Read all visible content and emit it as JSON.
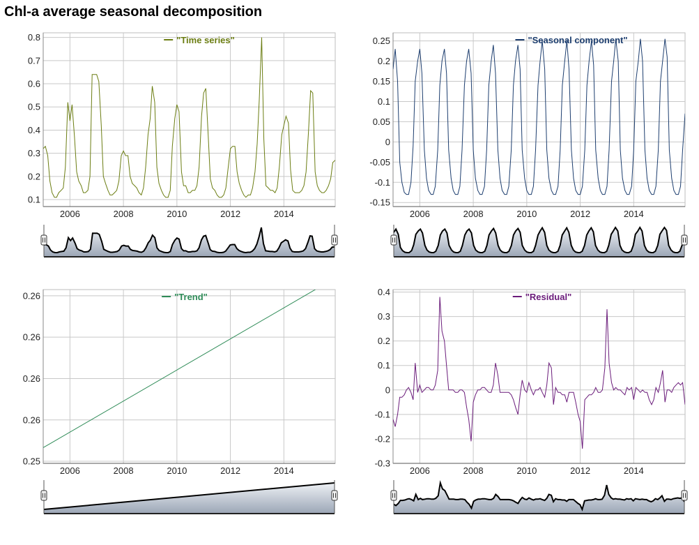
{
  "page": {
    "title": "Chl-a average seasonal decomposition"
  },
  "chart_data": [
    {
      "id": "timeseries",
      "type": "line",
      "legend": "\"Time series\"",
      "color": "#6b7d12",
      "x_ticks": [
        "2006",
        "2008",
        "2010",
        "2012",
        "2014"
      ],
      "x_tick_values": [
        2006,
        2008,
        2010,
        2012,
        2014
      ],
      "xlim": [
        2005.0,
        2015.92
      ],
      "ylim": [
        0.07,
        0.82
      ],
      "y_ticks": [
        0.1,
        0.2,
        0.3,
        0.4,
        0.5,
        0.6,
        0.7,
        0.8
      ],
      "y_tick_labels": [
        "0.1",
        "0.2",
        "0.3",
        "0.4",
        "0.5",
        "0.6",
        "0.7",
        "0.8"
      ],
      "x": [
        2005.0,
        2005.08,
        2005.17,
        2005.25,
        2005.33,
        2005.42,
        2005.5,
        2005.58,
        2005.67,
        2005.75,
        2005.83,
        2005.92,
        2006.0,
        2006.08,
        2006.17,
        2006.25,
        2006.33,
        2006.42,
        2006.5,
        2006.58,
        2006.67,
        2006.75,
        2006.83,
        2006.92,
        2007.0,
        2007.08,
        2007.17,
        2007.25,
        2007.33,
        2007.42,
        2007.5,
        2007.58,
        2007.67,
        2007.75,
        2007.83,
        2007.92,
        2008.0,
        2008.08,
        2008.17,
        2008.25,
        2008.33,
        2008.42,
        2008.5,
        2008.58,
        2008.67,
        2008.75,
        2008.83,
        2008.92,
        2009.0,
        2009.08,
        2009.17,
        2009.25,
        2009.33,
        2009.42,
        2009.5,
        2009.58,
        2009.67,
        2009.75,
        2009.83,
        2009.92,
        2010.0,
        2010.08,
        2010.17,
        2010.25,
        2010.33,
        2010.42,
        2010.5,
        2010.58,
        2010.67,
        2010.75,
        2010.83,
        2010.92,
        2011.0,
        2011.08,
        2011.17,
        2011.25,
        2011.33,
        2011.42,
        2011.5,
        2011.58,
        2011.67,
        2011.75,
        2011.83,
        2011.92,
        2012.0,
        2012.08,
        2012.17,
        2012.25,
        2012.33,
        2012.42,
        2012.5,
        2012.58,
        2012.67,
        2012.75,
        2012.83,
        2012.92,
        2013.0,
        2013.08,
        2013.17,
        2013.25,
        2013.33,
        2013.42,
        2013.5,
        2013.58,
        2013.67,
        2013.75,
        2013.83,
        2013.92,
        2014.0,
        2014.08,
        2014.17,
        2014.25,
        2014.33,
        2014.42,
        2014.5,
        2014.58,
        2014.67,
        2014.75,
        2014.83,
        2014.92,
        2015.0,
        2015.08,
        2015.17,
        2015.25,
        2015.33,
        2015.42,
        2015.5,
        2015.58,
        2015.67,
        2015.75,
        2015.83,
        2015.92
      ],
      "y": [
        0.32,
        0.33,
        0.29,
        0.18,
        0.13,
        0.11,
        0.11,
        0.13,
        0.14,
        0.15,
        0.24,
        0.52,
        0.44,
        0.51,
        0.37,
        0.22,
        0.18,
        0.16,
        0.13,
        0.13,
        0.14,
        0.2,
        0.64,
        0.64,
        0.64,
        0.61,
        0.42,
        0.2,
        0.17,
        0.14,
        0.12,
        0.12,
        0.13,
        0.14,
        0.18,
        0.29,
        0.31,
        0.29,
        0.29,
        0.2,
        0.17,
        0.16,
        0.15,
        0.13,
        0.12,
        0.15,
        0.24,
        0.38,
        0.45,
        0.59,
        0.52,
        0.24,
        0.17,
        0.14,
        0.12,
        0.11,
        0.11,
        0.14,
        0.33,
        0.45,
        0.51,
        0.48,
        0.22,
        0.16,
        0.16,
        0.13,
        0.13,
        0.14,
        0.14,
        0.16,
        0.24,
        0.46,
        0.56,
        0.58,
        0.38,
        0.19,
        0.15,
        0.14,
        0.12,
        0.11,
        0.11,
        0.12,
        0.15,
        0.24,
        0.32,
        0.33,
        0.33,
        0.22,
        0.17,
        0.14,
        0.12,
        0.11,
        0.12,
        0.12,
        0.15,
        0.22,
        0.34,
        0.53,
        0.8,
        0.36,
        0.16,
        0.15,
        0.14,
        0.14,
        0.13,
        0.15,
        0.24,
        0.38,
        0.42,
        0.46,
        0.43,
        0.23,
        0.14,
        0.13,
        0.13,
        0.13,
        0.14,
        0.16,
        0.22,
        0.39,
        0.57,
        0.56,
        0.22,
        0.16,
        0.14,
        0.13,
        0.13,
        0.14,
        0.16,
        0.19,
        0.26,
        0.27
      ]
    },
    {
      "id": "seasonal",
      "type": "line",
      "legend": "\"Seasonal component\"",
      "color": "#1c3d6e",
      "x_ticks": [
        "2006",
        "2008",
        "2010",
        "2012",
        "2014"
      ],
      "x_tick_values": [
        2006,
        2008,
        2010,
        2012,
        2014
      ],
      "xlim": [
        2005.0,
        2015.92
      ],
      "ylim": [
        -0.16,
        0.27
      ],
      "y_ticks": [
        -0.15,
        -0.1,
        -0.05,
        0,
        0.05,
        0.1,
        0.15,
        0.2,
        0.25
      ],
      "y_tick_labels": [
        "-0.15",
        "-0.1",
        "-0.05",
        "0",
        "0.05",
        "0.1",
        "0.15",
        "0.2",
        "0.25"
      ],
      "x": [
        2005.0,
        2005.08,
        2005.17,
        2005.25,
        2005.33,
        2005.42,
        2005.5,
        2005.58,
        2005.67,
        2005.75,
        2005.83,
        2005.92,
        2006.0,
        2006.08,
        2006.17,
        2006.25,
        2006.33,
        2006.42,
        2006.5,
        2006.58,
        2006.67,
        2006.75,
        2006.83,
        2006.92,
        2007.0,
        2007.08,
        2007.17,
        2007.25,
        2007.33,
        2007.42,
        2007.5,
        2007.58,
        2007.67,
        2007.75,
        2007.83,
        2007.92,
        2008.0,
        2008.08,
        2008.17,
        2008.25,
        2008.33,
        2008.42,
        2008.5,
        2008.58,
        2008.67,
        2008.75,
        2008.83,
        2008.92,
        2009.0,
        2009.08,
        2009.17,
        2009.25,
        2009.33,
        2009.42,
        2009.5,
        2009.58,
        2009.67,
        2009.75,
        2009.83,
        2009.92,
        2010.0,
        2010.08,
        2010.17,
        2010.25,
        2010.33,
        2010.42,
        2010.5,
        2010.58,
        2010.67,
        2010.75,
        2010.83,
        2010.92,
        2011.0,
        2011.08,
        2011.17,
        2011.25,
        2011.33,
        2011.42,
        2011.5,
        2011.58,
        2011.67,
        2011.75,
        2011.83,
        2011.92,
        2012.0,
        2012.08,
        2012.17,
        2012.25,
        2012.33,
        2012.42,
        2012.5,
        2012.58,
        2012.67,
        2012.75,
        2012.83,
        2012.92,
        2013.0,
        2013.08,
        2013.17,
        2013.25,
        2013.33,
        2013.42,
        2013.5,
        2013.58,
        2013.67,
        2013.75,
        2013.83,
        2013.92,
        2014.0,
        2014.08,
        2014.17,
        2014.25,
        2014.33,
        2014.42,
        2014.5,
        2014.58,
        2014.67,
        2014.75,
        2014.83,
        2014.92,
        2015.0,
        2015.08,
        2015.17,
        2015.25,
        2015.33,
        2015.42,
        2015.5,
        2015.58,
        2015.67,
        2015.75,
        2015.83,
        2015.92
      ],
      "y": [
        0.18,
        0.23,
        0.15,
        -0.05,
        -0.1,
        -0.125,
        -0.13,
        -0.13,
        -0.1,
        -0.01,
        0.15,
        0.2,
        0.23,
        0.17,
        -0.02,
        -0.09,
        -0.12,
        -0.13,
        -0.13,
        -0.11,
        -0.02,
        0.14,
        0.2,
        0.23,
        0.17,
        -0.02,
        -0.09,
        -0.12,
        -0.13,
        -0.13,
        -0.11,
        -0.02,
        0.14,
        0.2,
        0.23,
        0.17,
        -0.02,
        -0.09,
        -0.12,
        -0.13,
        -0.13,
        -0.11,
        -0.02,
        0.14,
        0.2,
        0.24,
        0.17,
        -0.02,
        -0.09,
        -0.12,
        -0.13,
        -0.13,
        -0.11,
        -0.02,
        0.14,
        0.2,
        0.24,
        0.18,
        -0.02,
        -0.09,
        -0.12,
        -0.13,
        -0.13,
        -0.11,
        -0.02,
        0.14,
        0.2,
        0.25,
        0.18,
        -0.02,
        -0.09,
        -0.12,
        -0.13,
        -0.13,
        -0.11,
        -0.02,
        0.14,
        0.2,
        0.25,
        0.18,
        -0.02,
        -0.09,
        -0.12,
        -0.13,
        -0.13,
        -0.11,
        -0.02,
        0.14,
        0.2,
        0.25,
        0.19,
        -0.02,
        -0.09,
        -0.12,
        -0.13,
        -0.13,
        -0.11,
        -0.02,
        0.15,
        0.2,
        0.255,
        0.2,
        -0.02,
        -0.09,
        -0.12,
        -0.13,
        -0.13,
        -0.11,
        -0.02,
        0.15,
        0.2,
        0.255,
        0.2,
        -0.02,
        -0.09,
        -0.12,
        -0.13,
        -0.13,
        -0.11,
        -0.02,
        0.15,
        0.2,
        0.255,
        0.21,
        -0.02,
        -0.09,
        -0.12,
        -0.13,
        -0.13,
        -0.11,
        -0.02,
        0.07
      ]
    },
    {
      "id": "trend",
      "type": "line",
      "legend": "\"Trend\"",
      "color": "#2e8b57",
      "x_ticks": [
        "2006",
        "2008",
        "2010",
        "2012",
        "2014"
      ],
      "x_tick_values": [
        2006,
        2008,
        2010,
        2012,
        2014
      ],
      "xlim": [
        2005.0,
        2015.92
      ],
      "ylim": [
        0.0,
        4.2
      ],
      "y_ticks": [
        0.05,
        1.05,
        2.05,
        3.05,
        4.05
      ],
      "y_tick_labels": [
        "0.25",
        "0.26",
        "0.26",
        "0.26",
        "0.26"
      ],
      "x": [
        2005.0,
        2015.92
      ],
      "y": [
        0.38,
        4.48
      ]
    },
    {
      "id": "residual",
      "type": "line",
      "legend": "\"Residual\"",
      "color": "#6a1b7a",
      "x_ticks": [
        "2006",
        "2008",
        "2010",
        "2012",
        "2014"
      ],
      "x_tick_values": [
        2006,
        2008,
        2010,
        2012,
        2014
      ],
      "xlim": [
        2005.0,
        2015.92
      ],
      "ylim": [
        -0.3,
        0.41
      ],
      "y_ticks": [
        -0.3,
        -0.2,
        -0.1,
        0,
        0.1,
        0.2,
        0.3,
        0.4
      ],
      "y_tick_labels": [
        "-0.3",
        "-0.2",
        "-0.1",
        "0",
        "0.1",
        "0.2",
        "0.3",
        "0.4"
      ],
      "x": [
        2005.0,
        2005.08,
        2005.17,
        2005.25,
        2005.33,
        2005.42,
        2005.5,
        2005.58,
        2005.67,
        2005.75,
        2005.83,
        2005.92,
        2006.0,
        2006.08,
        2006.17,
        2006.25,
        2006.33,
        2006.42,
        2006.5,
        2006.58,
        2006.67,
        2006.75,
        2006.83,
        2006.92,
        2007.0,
        2007.08,
        2007.17,
        2007.25,
        2007.33,
        2007.42,
        2007.5,
        2007.58,
        2007.67,
        2007.75,
        2007.83,
        2007.92,
        2008.0,
        2008.08,
        2008.17,
        2008.25,
        2008.33,
        2008.42,
        2008.5,
        2008.58,
        2008.67,
        2008.75,
        2008.83,
        2008.92,
        2009.0,
        2009.08,
        2009.17,
        2009.25,
        2009.33,
        2009.42,
        2009.5,
        2009.58,
        2009.67,
        2009.75,
        2009.83,
        2009.92,
        2010.0,
        2010.08,
        2010.17,
        2010.25,
        2010.33,
        2010.42,
        2010.5,
        2010.58,
        2010.67,
        2010.75,
        2010.83,
        2010.92,
        2011.0,
        2011.08,
        2011.17,
        2011.25,
        2011.33,
        2011.42,
        2011.5,
        2011.58,
        2011.67,
        2011.75,
        2011.83,
        2011.92,
        2012.0,
        2012.08,
        2012.17,
        2012.25,
        2012.33,
        2012.42,
        2012.5,
        2012.58,
        2012.67,
        2012.75,
        2012.83,
        2012.92,
        2013.0,
        2013.08,
        2013.17,
        2013.25,
        2013.33,
        2013.42,
        2013.5,
        2013.58,
        2013.67,
        2013.75,
        2013.83,
        2013.92,
        2014.0,
        2014.08,
        2014.17,
        2014.25,
        2014.33,
        2014.42,
        2014.5,
        2014.58,
        2014.67,
        2014.75,
        2014.83,
        2014.92,
        2015.0,
        2015.08,
        2015.17,
        2015.25,
        2015.33,
        2015.42,
        2015.5,
        2015.58,
        2015.67,
        2015.75,
        2015.83,
        2015.92
      ],
      "y": [
        -0.12,
        -0.15,
        -0.1,
        -0.03,
        -0.03,
        -0.02,
        0.0,
        0.01,
        -0.01,
        -0.04,
        0.11,
        -0.01,
        0.02,
        -0.01,
        0.0,
        0.01,
        0.01,
        0.0,
        0.0,
        0.02,
        0.08,
        0.38,
        0.24,
        0.2,
        0.1,
        0.0,
        0.0,
        0.0,
        -0.01,
        -0.01,
        0.0,
        0.0,
        -0.01,
        -0.07,
        -0.12,
        -0.21,
        -0.05,
        -0.02,
        0.0,
        0.0,
        0.01,
        0.01,
        0.0,
        -0.01,
        -0.01,
        0.02,
        0.11,
        0.06,
        -0.01,
        -0.01,
        -0.01,
        -0.01,
        -0.01,
        -0.02,
        -0.04,
        -0.07,
        -0.1,
        -0.02,
        0.04,
        0.0,
        -0.01,
        0.03,
        0.0,
        -0.02,
        0.0,
        0.0,
        0.01,
        -0.01,
        -0.03,
        0.02,
        0.11,
        0.09,
        -0.06,
        0.01,
        -0.01,
        -0.01,
        -0.02,
        -0.02,
        -0.05,
        -0.01,
        -0.01,
        -0.01,
        -0.05,
        -0.1,
        -0.13,
        -0.24,
        -0.04,
        -0.03,
        -0.02,
        -0.02,
        -0.01,
        0.01,
        -0.01,
        -0.01,
        0.0,
        0.09,
        0.33,
        0.11,
        0.03,
        0.0,
        0.01,
        0.0,
        0.0,
        -0.01,
        -0.02,
        0.01,
        0.0,
        0.01,
        -0.04,
        0.01,
        0.0,
        -0.01,
        0.0,
        -0.01,
        -0.01,
        -0.04,
        -0.06,
        -0.04,
        0.01,
        -0.01,
        0.03,
        0.08,
        -0.05,
        0.0,
        0.0,
        -0.01,
        0.01,
        0.02,
        0.03,
        0.02,
        0.03,
        -0.06
      ]
    }
  ]
}
